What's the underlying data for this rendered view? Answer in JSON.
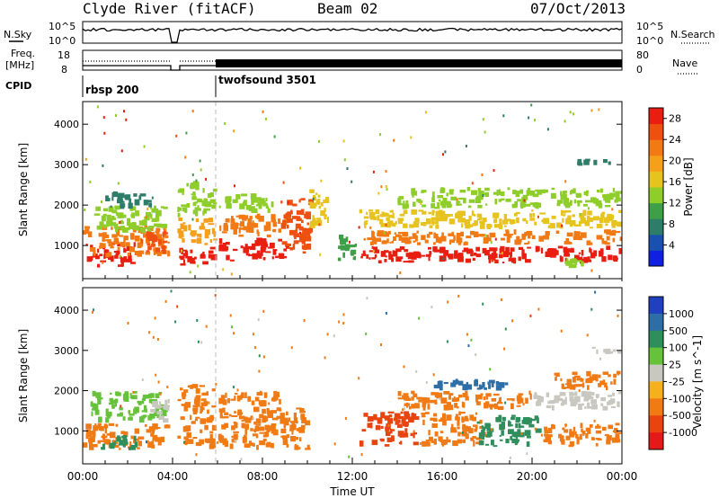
{
  "header": {
    "station": "Clyde River (fitACF)",
    "beam": "Beam 02",
    "date": "07/Oct/2013"
  },
  "strips": {
    "nsky_label": "N.Sky",
    "nsearch_label": "N.Search",
    "nsky_ticks": [
      "10^5",
      "10^0"
    ],
    "nsearch_ticks": [
      "10^5",
      "10^0"
    ],
    "freq_label_line1": "Freq.",
    "freq_label_line2": "[MHz]",
    "freq_ticks": [
      "18",
      "8"
    ],
    "nave_label": "Nave",
    "nave_ticks": [
      "80",
      "0"
    ],
    "cpid_label": "CPID",
    "cpid_segments": [
      {
        "name": "rbsp 200",
        "start_hour": 0
      },
      {
        "name": "twofsound 3501",
        "start_hour": 6
      }
    ]
  },
  "legend": {
    "power_title": "Power [dB]",
    "velocity_title": "Velocity [m s^-1]",
    "ylabel": "Slant Range [km]",
    "xlabel": "Time UT"
  },
  "chart_data": [
    {
      "type": "heatmap",
      "title": "Power",
      "xlabel": "Time UT",
      "ylabel": "Slant Range [km]",
      "x_ticks": [
        "00:00",
        "04:00",
        "08:00",
        "12:00",
        "16:00",
        "20:00",
        "00:00"
      ],
      "xlim_hours": [
        0,
        24
      ],
      "y_ticks": [
        1000,
        2000,
        3000,
        4000
      ],
      "ylim": [
        180,
        4560
      ],
      "colorbar": {
        "label": "Power [dB]",
        "ticks": [
          "4",
          "8",
          "12",
          "16",
          "20",
          "24",
          "28"
        ],
        "range": [
          0,
          30
        ],
        "colors": [
          "#1020e0",
          "#1a50b0",
          "#2d7d6a",
          "#3f9f48",
          "#8fce2a",
          "#e6c31e",
          "#f5a01a",
          "#f27a14",
          "#ee5010",
          "#e81e10"
        ]
      },
      "blocks": [
        {
          "t": [
            0.0,
            2.4
          ],
          "r": [
            450,
            1100
          ],
          "v": 28
        },
        {
          "t": [
            0.0,
            3.9
          ],
          "r": [
            700,
            1500
          ],
          "v": 22
        },
        {
          "t": [
            0.5,
            3.8
          ],
          "r": [
            1300,
            2050
          ],
          "v": 13
        },
        {
          "t": [
            1.0,
            3.2
          ],
          "r": [
            1900,
            2350
          ],
          "v": 6
        },
        {
          "t": [
            2.5,
            3.8
          ],
          "r": [
            800,
            1400
          ],
          "v": 26
        },
        {
          "t": [
            4.2,
            6.0
          ],
          "r": [
            500,
            1000
          ],
          "v": 28
        },
        {
          "t": [
            4.2,
            6.0
          ],
          "r": [
            1000,
            1700
          ],
          "v": 20
        },
        {
          "t": [
            4.2,
            6.0
          ],
          "r": [
            1700,
            2600
          ],
          "v": 12
        },
        {
          "t": [
            6.0,
            9.2
          ],
          "r": [
            600,
            1200
          ],
          "v": 27
        },
        {
          "t": [
            6.0,
            9.2
          ],
          "r": [
            1200,
            1800
          ],
          "v": 22
        },
        {
          "t": [
            6.3,
            8.6
          ],
          "r": [
            1800,
            2300
          ],
          "v": 14
        },
        {
          "t": [
            8.8,
            10.3
          ],
          "r": [
            800,
            2200
          ],
          "v": 24
        },
        {
          "t": [
            10.0,
            11.0
          ],
          "r": [
            1400,
            2450
          ],
          "v": 17
        },
        {
          "t": [
            11.3,
            12.2
          ],
          "r": [
            600,
            1300
          ],
          "v": 9
        },
        {
          "t": [
            12.3,
            24.0
          ],
          "r": [
            550,
            1000
          ],
          "v": 27
        },
        {
          "t": [
            12.3,
            24.0
          ],
          "r": [
            1000,
            1400
          ],
          "v": 23
        },
        {
          "t": [
            12.3,
            24.0
          ],
          "r": [
            1400,
            1900
          ],
          "v": 17
        },
        {
          "t": [
            14.0,
            24.0
          ],
          "r": [
            1900,
            2450
          ],
          "v": 12
        },
        {
          "t": [
            22.0,
            23.8
          ],
          "r": [
            2950,
            3150
          ],
          "v": 6
        },
        {
          "t": [
            21.2,
            22.4
          ],
          "r": [
            350,
            700
          ],
          "v": 14
        }
      ]
    },
    {
      "type": "heatmap",
      "title": "Velocity",
      "xlabel": "Time UT",
      "ylabel": "Slant Range [km]",
      "x_ticks": [
        "00:00",
        "04:00",
        "08:00",
        "12:00",
        "16:00",
        "20:00",
        "00:00"
      ],
      "xlim_hours": [
        0,
        24
      ],
      "y_ticks": [
        1000,
        2000,
        3000,
        4000
      ],
      "ylim": [
        180,
        4560
      ],
      "colorbar": {
        "label": "Velocity [m s^-1]",
        "ticks": [
          "1000",
          "500",
          "100",
          "25",
          "-25",
          "-100",
          "-500",
          "-1000"
        ],
        "colors": [
          "#2040c0",
          "#2e6ea6",
          "#2f8f5c",
          "#66c23a",
          "#c8c8c0",
          "#f5b01e",
          "#f07a14",
          "#e84410",
          "#e41a1a"
        ]
      },
      "blocks": [
        {
          "t": [
            0.0,
            3.9
          ],
          "r": [
            500,
            1200
          ],
          "v": -200
        },
        {
          "t": [
            0.8,
            2.6
          ],
          "r": [
            500,
            900
          ],
          "v": 200
        },
        {
          "t": [
            0.3,
            3.8
          ],
          "r": [
            1200,
            2000
          ],
          "v": 80
        },
        {
          "t": [
            3.0,
            3.9
          ],
          "r": [
            1200,
            1800
          ],
          "v": 0
        },
        {
          "t": [
            4.2,
            6.0
          ],
          "r": [
            500,
            1400
          ],
          "v": -300
        },
        {
          "t": [
            4.2,
            6.0
          ],
          "r": [
            1400,
            2200
          ],
          "v": -120
        },
        {
          "t": [
            6.0,
            10.3
          ],
          "r": [
            500,
            1600
          ],
          "v": -400
        },
        {
          "t": [
            6.0,
            9.0
          ],
          "r": [
            1600,
            2000
          ],
          "v": -150
        },
        {
          "t": [
            12.3,
            15.0
          ],
          "r": [
            600,
            1500
          ],
          "v": -800
        },
        {
          "t": [
            15.0,
            18.0
          ],
          "r": [
            600,
            1500
          ],
          "v": -400
        },
        {
          "t": [
            17.5,
            20.5
          ],
          "r": [
            600,
            1400
          ],
          "v": 300
        },
        {
          "t": [
            20.5,
            24.0
          ],
          "r": [
            600,
            1200
          ],
          "v": -350
        },
        {
          "t": [
            14.0,
            20.0
          ],
          "r": [
            1500,
            2000
          ],
          "v": -150
        },
        {
          "t": [
            15.5,
            19.0
          ],
          "r": [
            2000,
            2300
          ],
          "v": 500
        },
        {
          "t": [
            20.0,
            24.0
          ],
          "r": [
            1500,
            2000
          ],
          "v": 0
        },
        {
          "t": [
            21.0,
            24.0
          ],
          "r": [
            2000,
            2500
          ],
          "v": -300
        },
        {
          "t": [
            22.5,
            24.0
          ],
          "r": [
            2900,
            3100
          ],
          "v": 0
        }
      ]
    }
  ]
}
